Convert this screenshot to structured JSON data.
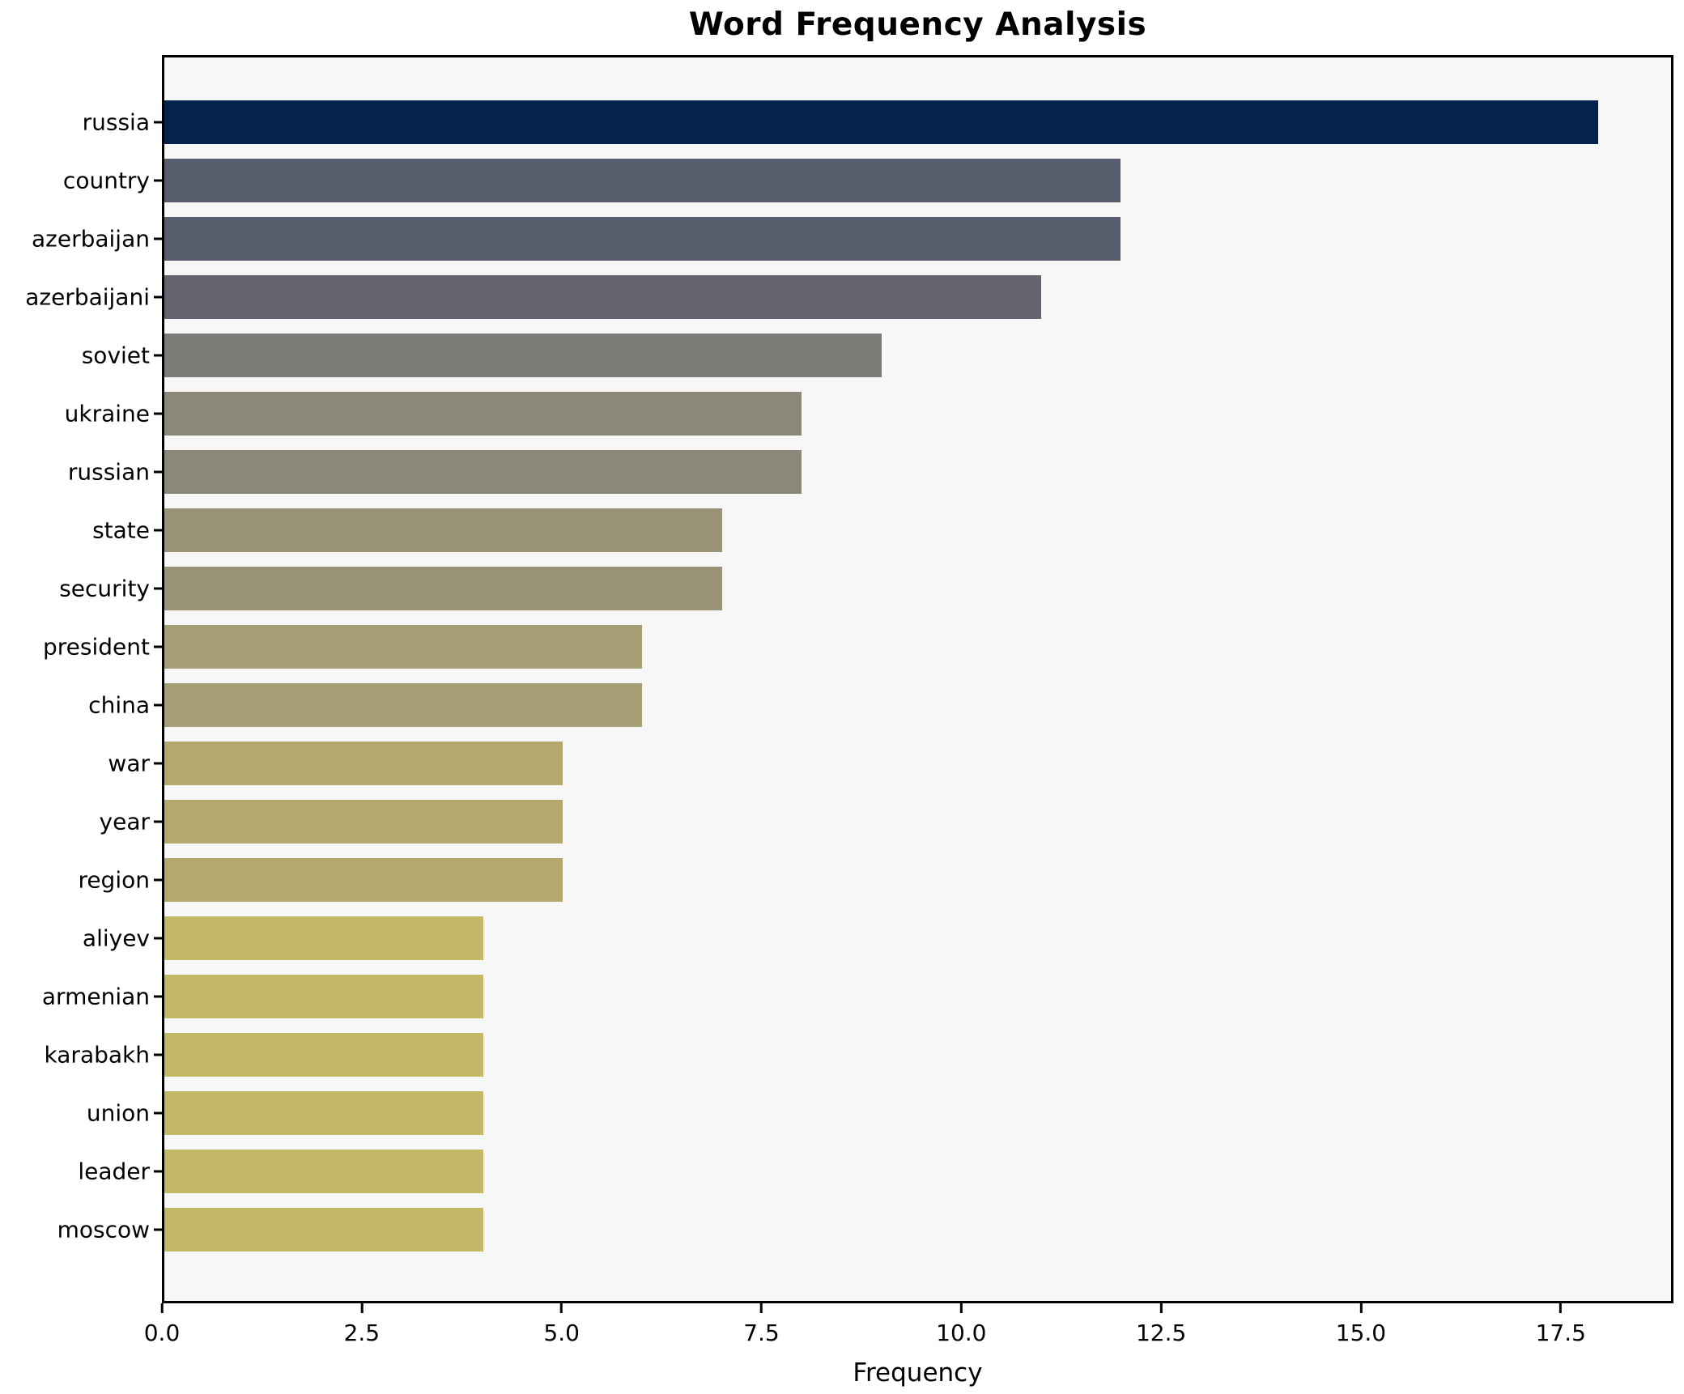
{
  "title": "Word Frequency Analysis",
  "xlabel": "Frequency",
  "colors": {
    "figure_bg": "#ffffff",
    "plot_bg": "#f7f7f7",
    "spine": "#000000",
    "text": "#000000"
  },
  "x_axis": {
    "max": 18.91,
    "ticks": [
      {
        "label": "0.0",
        "value": 0
      },
      {
        "label": "2.5",
        "value": 2.5
      },
      {
        "label": "5.0",
        "value": 5
      },
      {
        "label": "7.5",
        "value": 7.5
      },
      {
        "label": "10.0",
        "value": 10
      },
      {
        "label": "12.5",
        "value": 12.5
      },
      {
        "label": "15.0",
        "value": 15
      },
      {
        "label": "17.5",
        "value": 17.5
      }
    ]
  },
  "chart_data": {
    "type": "bar",
    "orientation": "horizontal",
    "title": "Word Frequency Analysis",
    "xlabel": "Frequency",
    "ylabel": "",
    "xlim": [
      0,
      18.91
    ],
    "grid": false,
    "legend": null,
    "categories": [
      "russia",
      "country",
      "azerbaijan",
      "azerbaijani",
      "soviet",
      "ukraine",
      "russian",
      "state",
      "security",
      "president",
      "china",
      "war",
      "year",
      "region",
      "aliyev",
      "armenian",
      "karabakh",
      "union",
      "leader",
      "moscow"
    ],
    "values": [
      18,
      12,
      12,
      11,
      9,
      8,
      8,
      7,
      7,
      6,
      6,
      5,
      5,
      5,
      4,
      4,
      4,
      4,
      4,
      4
    ],
    "bar_colors": [
      "#03234e",
      "#575c6c",
      "#575c6c",
      "#64646e",
      "#7b7b78",
      "#8b8879",
      "#8b8879",
      "#989277",
      "#989277",
      "#a69e74",
      "#a69e74",
      "#b4aa70",
      "#b4aa70",
      "#b4aa70",
      "#c4b768",
      "#c4b768",
      "#c4b768",
      "#c4b768",
      "#c4b768",
      "#c4b768"
    ],
    "colormap_hint": "cividis reversed by value"
  }
}
